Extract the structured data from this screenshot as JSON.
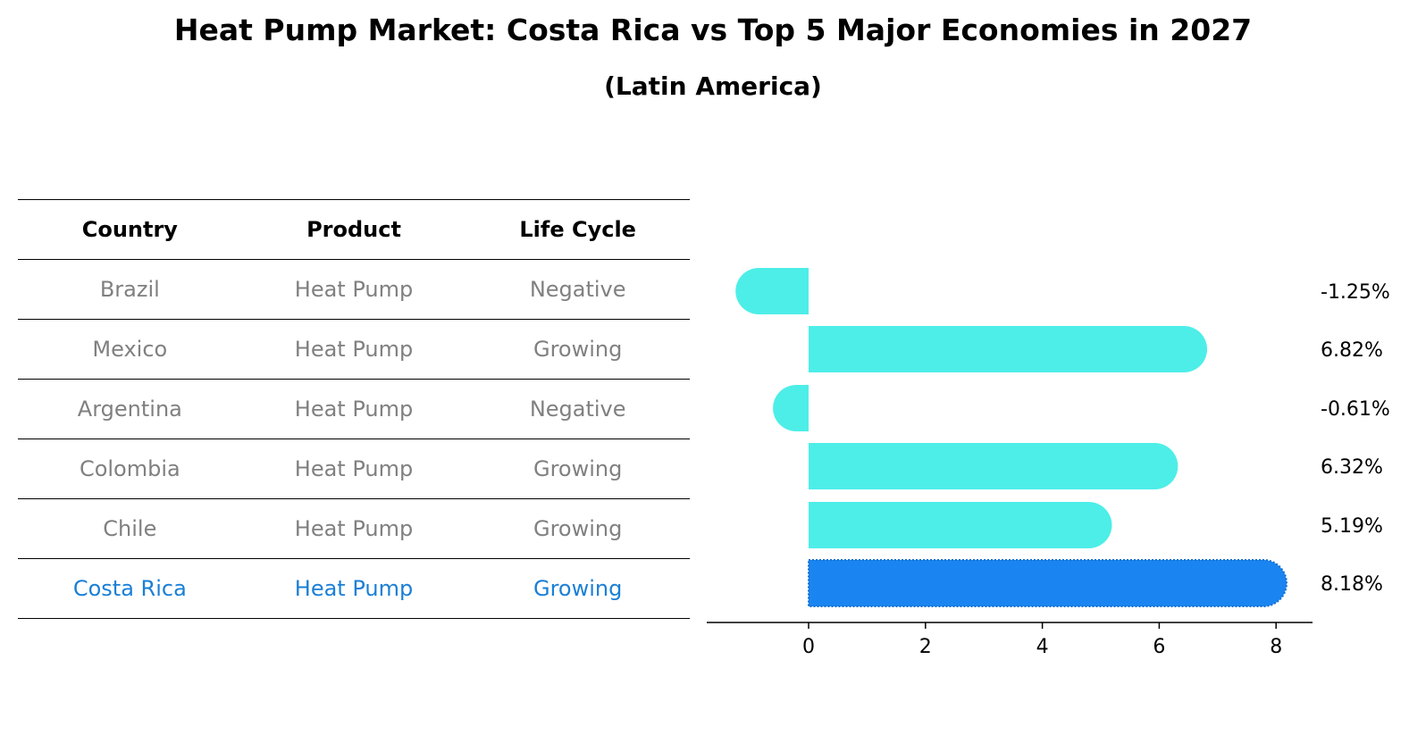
{
  "title": "Heat Pump Market: Costa Rica vs Top 5 Major Economies in 2027",
  "subtitle": "(Latin America)",
  "table": {
    "headers": [
      "Country",
      "Product",
      "Life Cycle"
    ],
    "rows": [
      [
        "Brazil",
        "Heat Pump",
        "Negative"
      ],
      [
        "Mexico",
        "Heat Pump",
        "Growing"
      ],
      [
        "Argentina",
        "Heat Pump",
        "Negative"
      ],
      [
        "Colombia",
        "Heat Pump",
        "Growing"
      ],
      [
        "Chile",
        "Heat Pump",
        "Growing"
      ],
      [
        "Costa Rica",
        "Heat Pump",
        "Growing"
      ]
    ],
    "highlight_row": 5
  },
  "chart_data": {
    "type": "bar",
    "orientation": "horizontal",
    "categories": [
      "Brazil",
      "Mexico",
      "Argentina",
      "Colombia",
      "Chile",
      "Costa Rica"
    ],
    "values": [
      -1.25,
      6.82,
      -0.61,
      6.32,
      5.19,
      8.18
    ],
    "value_labels": [
      "-1.25%",
      "6.82%",
      "-0.61%",
      "6.32%",
      "5.19%",
      "8.18%"
    ],
    "xlim": [
      -1.75,
      8.6
    ],
    "xticks": [
      0,
      2,
      4,
      6,
      8
    ],
    "xlabel": "",
    "ylabel": "",
    "highlight_index": 5,
    "colors": {
      "default": "#4deee8",
      "highlight": "#1a85f1"
    }
  }
}
